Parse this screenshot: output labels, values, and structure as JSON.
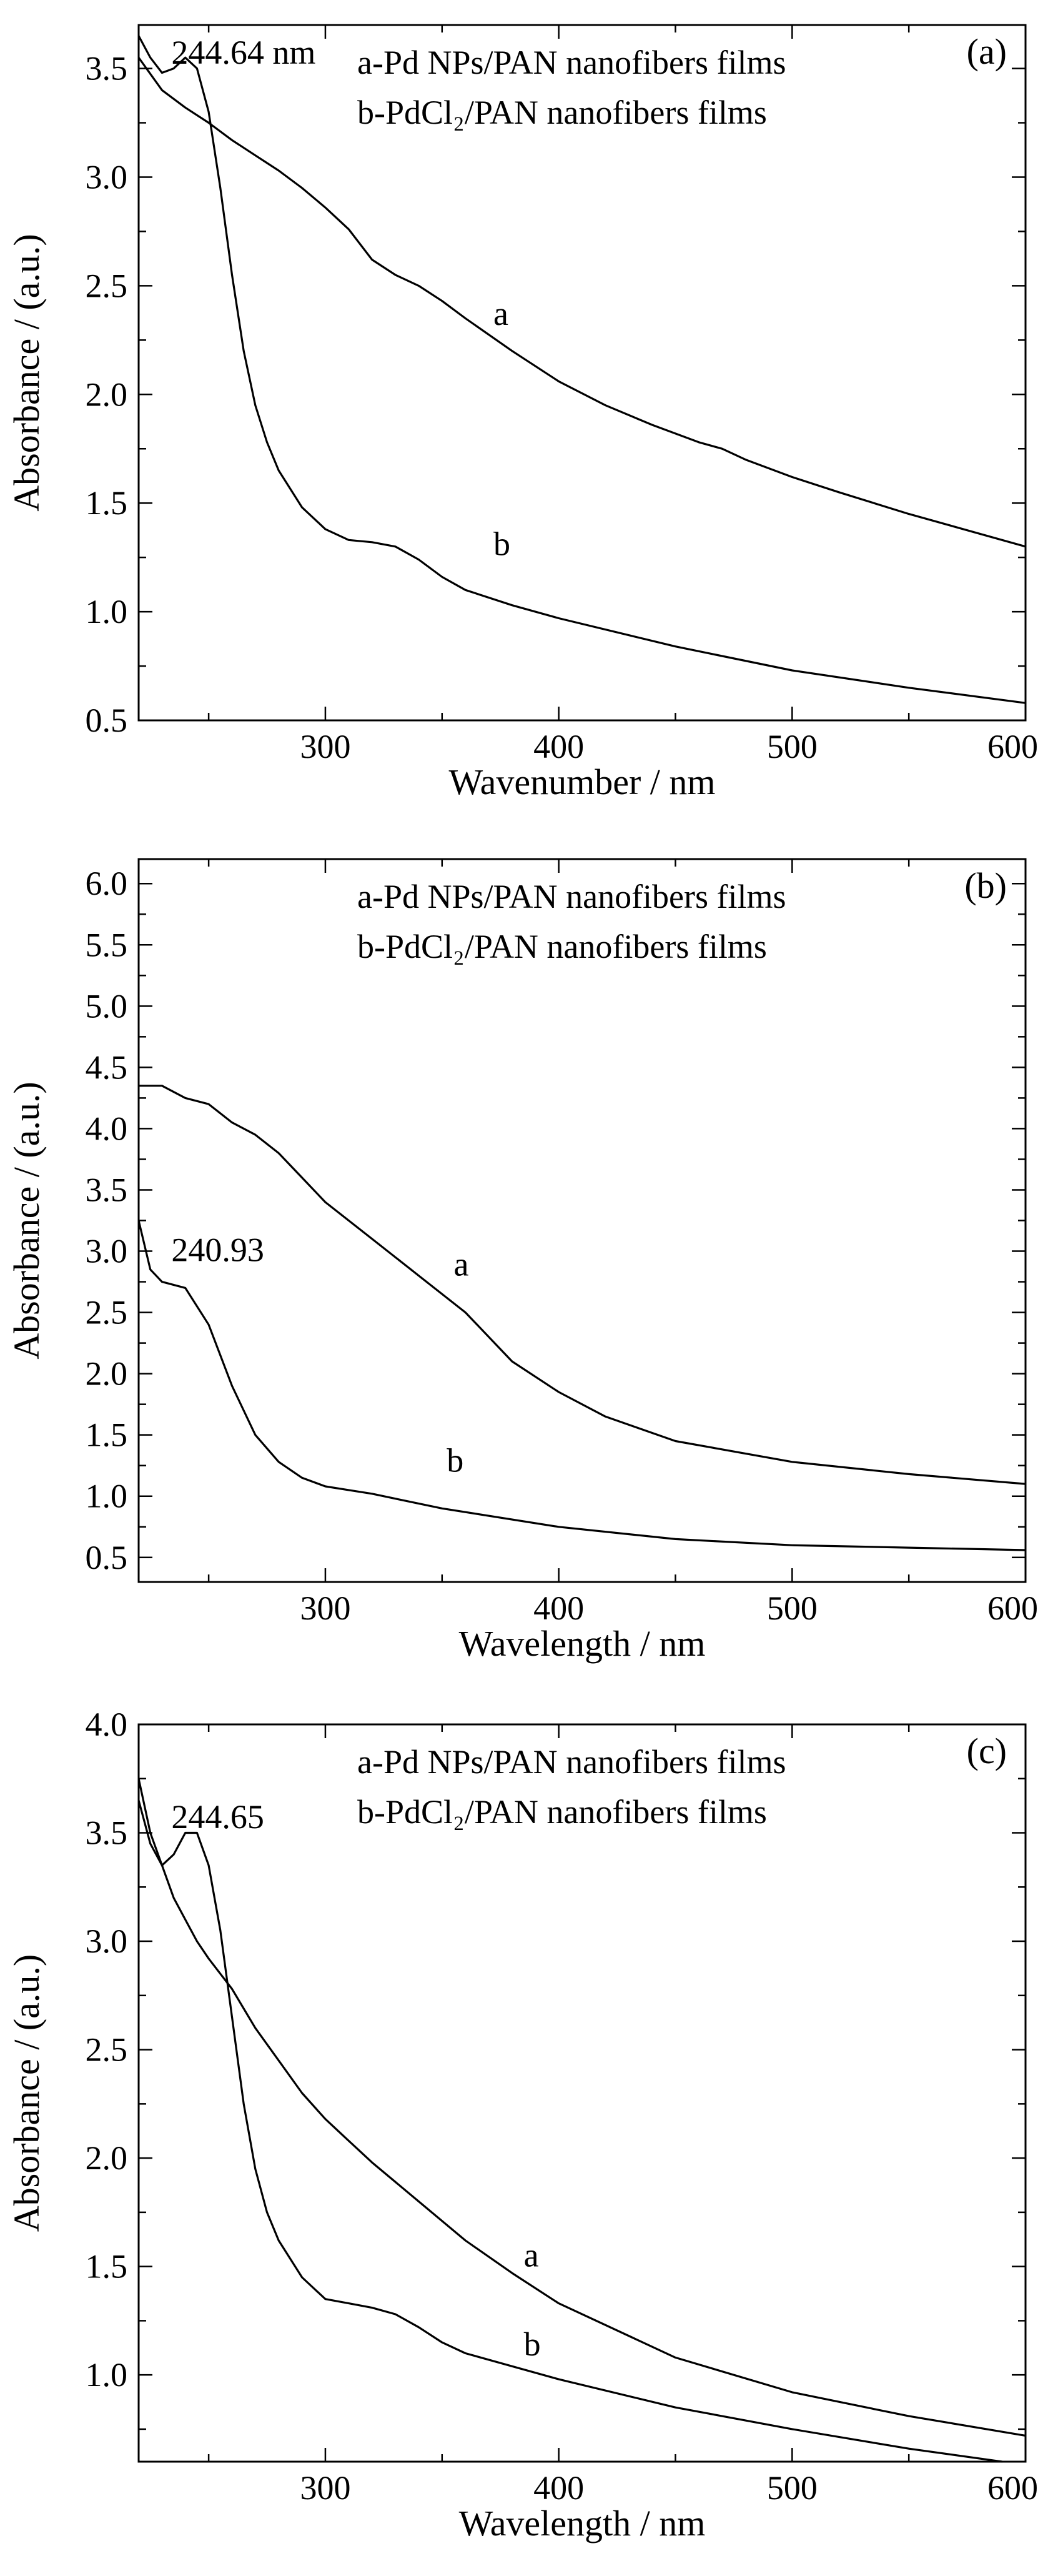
{
  "chart_data": [
    {
      "type": "line",
      "panel_label": "(a)",
      "xlabel": "Wavenumber / nm",
      "ylabel": "Absorbance / (a.u.)",
      "xlim": [
        220,
        600
      ],
      "ylim": [
        0.5,
        3.7
      ],
      "xticks": [
        "300",
        "400",
        "500",
        "600"
      ],
      "yticks": [
        "0.5",
        "1.0",
        "1.5",
        "2.0",
        "2.5",
        "3.0",
        "3.5"
      ],
      "legend": [
        "a-Pd NPs/PAN nanofibers films",
        "b-PdCl₂/PAN nanofibers films"
      ],
      "legend_position": "top-center",
      "annotations": [
        {
          "text": "244.64 nm",
          "x": 230,
          "y": 3.55
        }
      ],
      "series": [
        {
          "name": "a",
          "label_at": [
            372,
            2.32
          ],
          "x": [
            220,
            230,
            240,
            250,
            260,
            270,
            280,
            290,
            300,
            310,
            320,
            330,
            340,
            350,
            360,
            380,
            400,
            420,
            440,
            460,
            470,
            480,
            500,
            520,
            550,
            580,
            600
          ],
          "y": [
            3.55,
            3.4,
            3.32,
            3.25,
            3.17,
            3.1,
            3.03,
            2.95,
            2.86,
            2.76,
            2.62,
            2.55,
            2.5,
            2.43,
            2.35,
            2.2,
            2.06,
            1.95,
            1.86,
            1.78,
            1.75,
            1.7,
            1.62,
            1.55,
            1.45,
            1.36,
            1.3
          ]
        },
        {
          "name": "b",
          "label_at": [
            372,
            1.26
          ],
          "x": [
            220,
            225,
            230,
            235,
            240,
            245,
            250,
            255,
            260,
            265,
            270,
            275,
            280,
            290,
            300,
            310,
            320,
            330,
            340,
            350,
            360,
            380,
            400,
            450,
            500,
            550,
            600
          ],
          "y": [
            3.65,
            3.55,
            3.48,
            3.5,
            3.55,
            3.5,
            3.3,
            2.95,
            2.55,
            2.2,
            1.95,
            1.78,
            1.65,
            1.48,
            1.38,
            1.33,
            1.32,
            1.3,
            1.24,
            1.16,
            1.1,
            1.03,
            0.97,
            0.84,
            0.73,
            0.65,
            0.58
          ]
        }
      ]
    },
    {
      "type": "line",
      "panel_label": "(b)",
      "xlabel": "Wavelength / nm",
      "ylabel": "Absorbance / (a.u.)",
      "xlim": [
        220,
        600
      ],
      "ylim": [
        0.3,
        6.2
      ],
      "xticks": [
        "300",
        "400",
        "500",
        "600"
      ],
      "yticks": [
        "0.5",
        "1.0",
        "1.5",
        "2.0",
        "2.5",
        "3.0",
        "3.5",
        "4.0",
        "4.5",
        "5.0",
        "5.5",
        "6.0"
      ],
      "legend": [
        "a-Pd NPs/PAN nanofibers films",
        "b-PdCl₂/PAN nanofibers films"
      ],
      "legend_position": "top-center",
      "annotations": [
        {
          "text": "240.93",
          "x": 230,
          "y": 2.97
        }
      ],
      "series": [
        {
          "name": "a",
          "label_at": [
            355,
            2.8
          ],
          "x": [
            220,
            230,
            240,
            250,
            260,
            270,
            280,
            290,
            300,
            320,
            340,
            360,
            380,
            400,
            420,
            450,
            500,
            550,
            600
          ],
          "y": [
            4.35,
            4.35,
            4.25,
            4.2,
            4.05,
            3.95,
            3.8,
            3.6,
            3.4,
            3.1,
            2.8,
            2.5,
            2.1,
            1.85,
            1.65,
            1.45,
            1.28,
            1.18,
            1.1
          ]
        },
        {
          "name": "b",
          "label_at": [
            352,
            1.2
          ],
          "x": [
            220,
            225,
            230,
            240,
            250,
            260,
            270,
            280,
            290,
            300,
            310,
            320,
            330,
            350,
            400,
            450,
            500,
            550,
            600
          ],
          "y": [
            3.25,
            2.85,
            2.75,
            2.7,
            2.4,
            1.9,
            1.5,
            1.28,
            1.15,
            1.08,
            1.05,
            1.02,
            0.98,
            0.9,
            0.75,
            0.65,
            0.6,
            0.58,
            0.56
          ]
        }
      ]
    },
    {
      "type": "line",
      "panel_label": "(c)",
      "xlabel": "Wavelength / nm",
      "ylabel": "Absorbance / (a.u.)",
      "xlim": [
        220,
        600
      ],
      "ylim": [
        0.6,
        4.0
      ],
      "xticks": [
        "300",
        "400",
        "500",
        "600"
      ],
      "yticks": [
        "1.0",
        "1.5",
        "2.0",
        "2.5",
        "3.0",
        "3.5",
        "4.0"
      ],
      "legend": [
        "a-Pd NPs/PAN nanofibers films",
        "b-PdCl₂/PAN nanofibers films"
      ],
      "legend_position": "top-center",
      "annotations": [
        {
          "text": "244.65",
          "x": 230,
          "y": 3.55
        }
      ],
      "series": [
        {
          "name": "a",
          "label_at": [
            385,
            1.5
          ],
          "x": [
            220,
            225,
            230,
            235,
            240,
            245,
            250,
            260,
            270,
            280,
            290,
            300,
            310,
            320,
            340,
            360,
            380,
            400,
            450,
            500,
            550,
            600
          ],
          "y": [
            3.65,
            3.45,
            3.35,
            3.2,
            3.1,
            3.0,
            2.92,
            2.78,
            2.6,
            2.45,
            2.3,
            2.18,
            2.08,
            1.98,
            1.8,
            1.62,
            1.47,
            1.33,
            1.08,
            0.92,
            0.81,
            0.72
          ]
        },
        {
          "name": "b",
          "label_at": [
            385,
            1.09
          ],
          "x": [
            220,
            225,
            230,
            235,
            240,
            245,
            250,
            255,
            260,
            265,
            270,
            275,
            280,
            290,
            300,
            310,
            320,
            330,
            340,
            350,
            360,
            380,
            400,
            450,
            500,
            550,
            590
          ],
          "y": [
            3.75,
            3.5,
            3.35,
            3.4,
            3.5,
            3.5,
            3.35,
            3.05,
            2.65,
            2.25,
            1.95,
            1.75,
            1.62,
            1.45,
            1.35,
            1.33,
            1.31,
            1.28,
            1.22,
            1.15,
            1.1,
            1.04,
            0.98,
            0.85,
            0.75,
            0.66,
            0.6
          ]
        }
      ]
    }
  ]
}
